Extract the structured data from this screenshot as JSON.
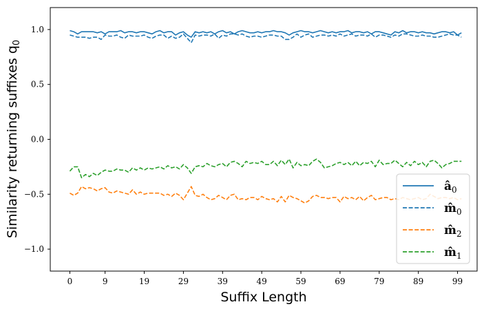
{
  "chart_data": {
    "type": "line",
    "title": "",
    "xlabel": "Suffix Length",
    "ylabel": "Similarity returning suffixes q",
    "ylabel_sub": "0",
    "xlim": [
      -5,
      104
    ],
    "ylim": [
      -1.2,
      1.2
    ],
    "xticks": [
      0,
      9,
      19,
      29,
      39,
      49,
      59,
      69,
      79,
      89,
      99
    ],
    "yticks": [
      1.0,
      0.5,
      0.0,
      -0.5,
      -1.0
    ],
    "ytick_labels": [
      "1.0",
      "0.5",
      "0.0",
      "−0.5",
      "−1.0"
    ],
    "grid": false,
    "legend_position": "lower-right",
    "series": [
      {
        "name": "â",
        "name_sub": "0",
        "color": "#1f77b4",
        "style": "solid",
        "values": [
          0.99,
          0.98,
          0.96,
          0.98,
          0.98,
          0.98,
          0.98,
          0.97,
          0.98,
          0.96,
          0.98,
          0.98,
          0.98,
          0.99,
          0.97,
          0.98,
          0.98,
          0.97,
          0.98,
          0.98,
          0.97,
          0.96,
          0.98,
          0.99,
          0.97,
          0.98,
          0.98,
          0.95,
          0.97,
          0.98,
          0.95,
          0.93,
          0.98,
          0.97,
          0.98,
          0.97,
          0.98,
          0.96,
          0.98,
          0.99,
          0.97,
          0.98,
          0.96,
          0.98,
          0.99,
          0.98,
          0.97,
          0.97,
          0.98,
          0.97,
          0.98,
          0.98,
          0.99,
          0.98,
          0.98,
          0.97,
          0.95,
          0.97,
          0.98,
          0.99,
          0.98,
          0.98,
          0.97,
          0.98,
          0.99,
          0.98,
          0.97,
          0.98,
          0.97,
          0.98,
          0.98,
          0.99,
          0.97,
          0.98,
          0.98,
          0.97,
          0.98,
          0.96,
          0.98,
          0.98,
          0.97,
          0.96,
          0.95,
          0.98,
          0.97,
          0.99,
          0.97,
          0.98,
          0.98,
          0.97,
          0.98,
          0.97,
          0.97,
          0.96,
          0.97,
          0.98,
          0.98,
          0.97,
          0.98,
          0.95,
          0.97
        ]
      },
      {
        "name": "m̂",
        "name_sub": "0",
        "color": "#1f77b4",
        "style": "dashed",
        "values": [
          0.95,
          0.94,
          0.93,
          0.93,
          0.93,
          0.92,
          0.93,
          0.93,
          0.91,
          0.95,
          0.94,
          0.94,
          0.95,
          0.93,
          0.92,
          0.95,
          0.94,
          0.94,
          0.94,
          0.95,
          0.93,
          0.92,
          0.94,
          0.95,
          0.95,
          0.92,
          0.94,
          0.92,
          0.93,
          0.96,
          0.92,
          0.88,
          0.95,
          0.94,
          0.95,
          0.95,
          0.94,
          0.96,
          0.92,
          0.95,
          0.94,
          0.96,
          0.96,
          0.95,
          0.96,
          0.94,
          0.93,
          0.94,
          0.94,
          0.93,
          0.94,
          0.95,
          0.95,
          0.94,
          0.94,
          0.91,
          0.91,
          0.93,
          0.96,
          0.93,
          0.95,
          0.96,
          0.93,
          0.94,
          0.95,
          0.95,
          0.94,
          0.95,
          0.94,
          0.96,
          0.94,
          0.95,
          0.96,
          0.94,
          0.95,
          0.95,
          0.94,
          0.96,
          0.93,
          0.95,
          0.95,
          0.94,
          0.93,
          0.95,
          0.94,
          0.96,
          0.96,
          0.95,
          0.94,
          0.94,
          0.95,
          0.94,
          0.94,
          0.93,
          0.93,
          0.94,
          0.95,
          0.96,
          0.95,
          0.95,
          0.93
        ]
      },
      {
        "name": "m̂",
        "name_sub": "2",
        "color": "#ff7f0e",
        "style": "dashed",
        "values": [
          -0.49,
          -0.51,
          -0.49,
          -0.43,
          -0.45,
          -0.44,
          -0.45,
          -0.47,
          -0.45,
          -0.44,
          -0.48,
          -0.49,
          -0.47,
          -0.48,
          -0.49,
          -0.5,
          -0.46,
          -0.5,
          -0.48,
          -0.5,
          -0.49,
          -0.49,
          -0.49,
          -0.49,
          -0.51,
          -0.5,
          -0.52,
          -0.49,
          -0.51,
          -0.55,
          -0.49,
          -0.43,
          -0.51,
          -0.52,
          -0.5,
          -0.53,
          -0.55,
          -0.54,
          -0.51,
          -0.53,
          -0.55,
          -0.51,
          -0.5,
          -0.55,
          -0.54,
          -0.55,
          -0.53,
          -0.53,
          -0.55,
          -0.52,
          -0.54,
          -0.55,
          -0.54,
          -0.57,
          -0.52,
          -0.57,
          -0.51,
          -0.53,
          -0.54,
          -0.56,
          -0.58,
          -0.56,
          -0.52,
          -0.51,
          -0.53,
          -0.53,
          -0.54,
          -0.53,
          -0.53,
          -0.57,
          -0.52,
          -0.54,
          -0.53,
          -0.55,
          -0.52,
          -0.56,
          -0.53,
          -0.51,
          -0.55,
          -0.54,
          -0.53,
          -0.53,
          -0.55,
          -0.54,
          -0.55,
          -0.53,
          -0.54,
          -0.55,
          -0.54,
          -0.53,
          -0.55,
          -0.54,
          -0.5,
          -0.52,
          -0.54,
          -0.53,
          -0.53,
          -0.54,
          -0.53,
          -0.55,
          -0.54
        ]
      },
      {
        "name": "m̂",
        "name_sub": "1",
        "color": "#2ca02c",
        "style": "dashed",
        "values": [
          -0.29,
          -0.25,
          -0.25,
          -0.35,
          -0.32,
          -0.34,
          -0.31,
          -0.33,
          -0.3,
          -0.28,
          -0.29,
          -0.29,
          -0.27,
          -0.28,
          -0.28,
          -0.3,
          -0.26,
          -0.28,
          -0.26,
          -0.28,
          -0.26,
          -0.27,
          -0.26,
          -0.25,
          -0.27,
          -0.24,
          -0.26,
          -0.25,
          -0.27,
          -0.23,
          -0.26,
          -0.31,
          -0.25,
          -0.24,
          -0.25,
          -0.22,
          -0.24,
          -0.25,
          -0.23,
          -0.22,
          -0.25,
          -0.21,
          -0.2,
          -0.22,
          -0.25,
          -0.2,
          -0.22,
          -0.21,
          -0.22,
          -0.2,
          -0.23,
          -0.23,
          -0.2,
          -0.24,
          -0.19,
          -0.23,
          -0.18,
          -0.26,
          -0.21,
          -0.24,
          -0.23,
          -0.24,
          -0.2,
          -0.18,
          -0.21,
          -0.26,
          -0.25,
          -0.24,
          -0.22,
          -0.21,
          -0.23,
          -0.21,
          -0.24,
          -0.2,
          -0.24,
          -0.21,
          -0.22,
          -0.2,
          -0.25,
          -0.19,
          -0.23,
          -0.22,
          -0.22,
          -0.19,
          -0.22,
          -0.25,
          -0.21,
          -0.24,
          -0.2,
          -0.23,
          -0.21,
          -0.25,
          -0.2,
          -0.19,
          -0.22,
          -0.26,
          -0.23,
          -0.22,
          -0.2,
          -0.2,
          -0.2
        ]
      }
    ]
  }
}
